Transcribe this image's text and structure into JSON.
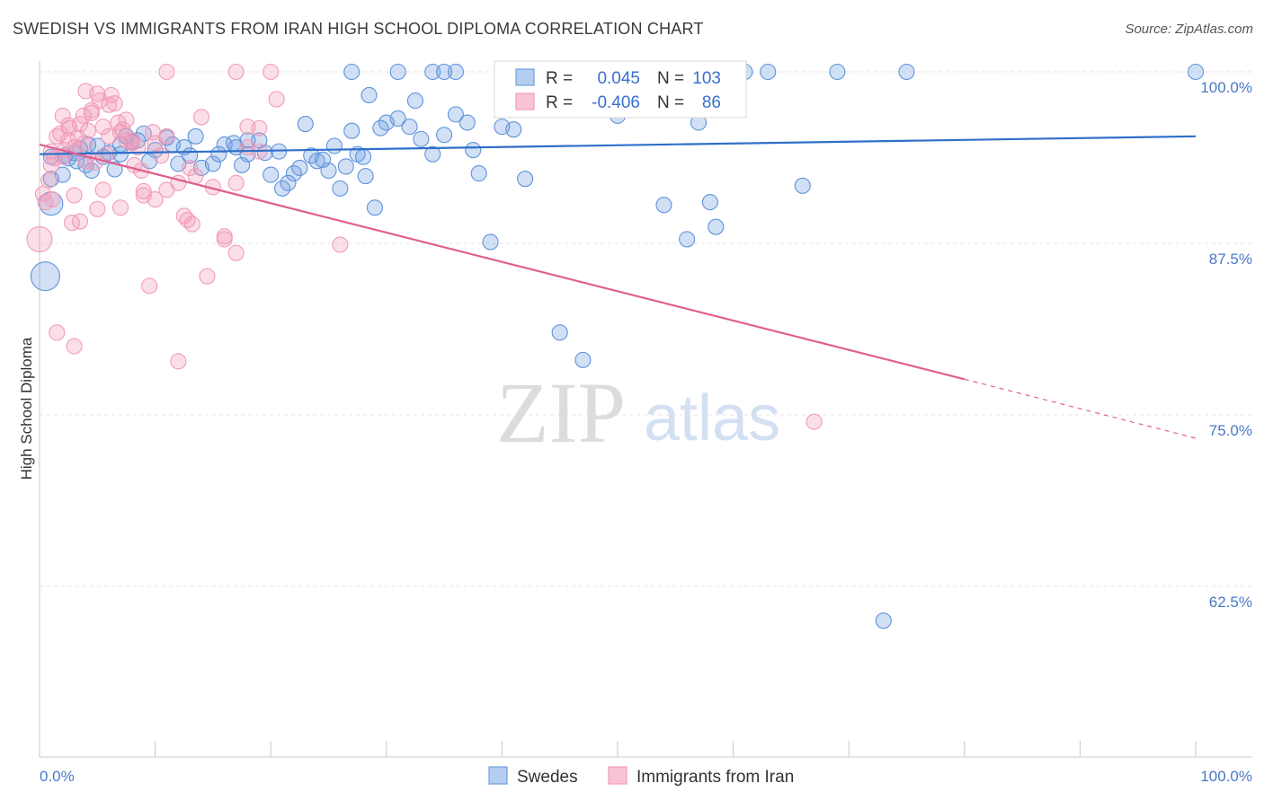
{
  "title": "SWEDISH VS IMMIGRANTS FROM IRAN HIGH SCHOOL DIPLOMA CORRELATION CHART",
  "source": "Source: ZipAtlas.com",
  "watermark": {
    "zip": "ZIP",
    "atlas": "atlas"
  },
  "colors": {
    "blue": "#6fa0e0",
    "blue_line": "#2f6fc9",
    "pink": "#f29bb8",
    "pink_line": "#e0608f",
    "axis_text": "#4a78c8"
  },
  "legend": {
    "r_label": "R =",
    "n_label": "N =",
    "rows": [
      {
        "r": "0.045",
        "n": "103"
      },
      {
        "r": "-0.406",
        "n": "86"
      }
    ]
  },
  "chart_data": {
    "type": "scatter",
    "ylabel": "High School Diploma",
    "x_tick_labels": [
      "0.0%",
      "100.0%"
    ],
    "y_tick_labels": [
      "100.0%",
      "87.5%",
      "75.0%",
      "62.5%"
    ],
    "xlim": [
      0,
      100
    ],
    "ylim": [
      50,
      102
    ],
    "y_ticks": [
      100,
      87.5,
      75,
      62.5
    ],
    "x_minor_ticks": [
      0,
      10,
      20,
      30,
      40,
      50,
      60,
      70,
      80,
      90,
      100
    ],
    "grid": true,
    "legend_position": "top-center",
    "series": [
      {
        "name": "Swedes",
        "r": 0.045,
        "n": 103,
        "trend": {
          "x0": 0,
          "y0": 94.0,
          "x1": 100,
          "y1": 95.3
        },
        "points": [
          [
            1,
            90.4
          ],
          [
            1,
            92.2
          ],
          [
            0.5,
            85.1
          ],
          [
            1,
            93.8
          ],
          [
            2,
            92.5
          ],
          [
            2.5,
            93.7
          ],
          [
            3,
            94.1
          ],
          [
            3.5,
            94.4
          ],
          [
            4,
            93.2
          ],
          [
            4.5,
            92.8
          ],
          [
            5,
            94.6
          ],
          [
            6,
            94.1
          ],
          [
            7,
            94.7
          ],
          [
            7.5,
            95.3
          ],
          [
            8,
            94.9
          ],
          [
            9,
            95.5
          ],
          [
            9.5,
            93.5
          ],
          [
            10,
            94.3
          ],
          [
            11,
            95.2
          ],
          [
            12,
            93.3
          ],
          [
            12.5,
            94.5
          ],
          [
            13,
            93.9
          ],
          [
            14,
            93.0
          ],
          [
            15,
            93.3
          ],
          [
            16,
            94.7
          ],
          [
            17,
            94.5
          ],
          [
            18,
            94.0
          ],
          [
            19,
            95.0
          ],
          [
            20,
            92.5
          ],
          [
            21,
            91.5
          ],
          [
            22,
            92.6
          ],
          [
            23,
            96.2
          ],
          [
            23.5,
            93.9
          ],
          [
            24,
            93.5
          ],
          [
            25,
            92.8
          ],
          [
            26,
            91.5
          ],
          [
            27,
            95.7
          ],
          [
            27.5,
            94.0
          ],
          [
            28,
            93.8
          ],
          [
            28.5,
            98.3
          ],
          [
            29,
            90.1
          ],
          [
            30,
            96.3
          ],
          [
            31,
            96.6
          ],
          [
            32,
            96.0
          ],
          [
            32.5,
            97.9
          ],
          [
            34,
            94.0
          ],
          [
            35,
            95.4
          ],
          [
            36,
            96.9
          ],
          [
            37,
            96.3
          ],
          [
            38,
            92.6
          ],
          [
            39,
            87.6
          ],
          [
            40,
            96.0
          ],
          [
            41,
            95.8
          ],
          [
            42,
            92.2
          ],
          [
            45,
            81.0
          ],
          [
            47,
            79.0
          ],
          [
            50,
            96.8
          ],
          [
            54,
            90.3
          ],
          [
            56,
            87.8
          ],
          [
            57,
            96.3
          ],
          [
            58,
            90.5
          ],
          [
            58.5,
            88.7
          ],
          [
            66,
            91.7
          ],
          [
            73,
            60.0
          ],
          [
            100,
            100
          ],
          [
            27,
            100
          ],
          [
            31,
            100
          ],
          [
            34,
            100
          ],
          [
            35,
            100
          ],
          [
            36,
            100
          ],
          [
            41,
            100
          ],
          [
            44,
            100
          ],
          [
            46,
            100
          ],
          [
            52,
            100
          ],
          [
            55,
            100
          ],
          [
            61,
            100
          ],
          [
            63,
            100
          ],
          [
            69,
            100
          ],
          [
            75,
            100
          ],
          [
            18,
            95.0
          ],
          [
            15.5,
            94.0
          ],
          [
            13.5,
            95.3
          ],
          [
            8.5,
            95.0
          ],
          [
            7,
            94.0
          ],
          [
            5.5,
            93.8
          ],
          [
            4.2,
            94.7
          ],
          [
            3.2,
            93.5
          ],
          [
            2.2,
            93.9
          ],
          [
            6.5,
            92.9
          ],
          [
            11.5,
            94.7
          ],
          [
            19.5,
            94.1
          ],
          [
            17.5,
            93.2
          ],
          [
            22.5,
            93.0
          ],
          [
            24.5,
            93.6
          ],
          [
            16.8,
            94.8
          ],
          [
            20.7,
            94.2
          ],
          [
            21.5,
            91.9
          ],
          [
            25.5,
            94.6
          ],
          [
            26.5,
            93.1
          ],
          [
            28.2,
            92.4
          ],
          [
            29.5,
            95.9
          ],
          [
            33,
            95.1
          ],
          [
            37.5,
            94.3
          ]
        ]
      },
      {
        "name": "Immigrants from Iran",
        "r": -0.406,
        "n": 86,
        "trend": {
          "x0": 0,
          "y0": 94.7,
          "x1": 80,
          "y1": 77.6,
          "dash_to": {
            "x": 100,
            "y": 73.3
          }
        },
        "points": [
          [
            0,
            87.8
          ],
          [
            0.5,
            90.5
          ],
          [
            1,
            94.2
          ],
          [
            1.5,
            95.3
          ],
          [
            2,
            96.8
          ],
          [
            2.5,
            95.0
          ],
          [
            3,
            94.5
          ],
          [
            3.5,
            96.2
          ],
          [
            4,
            98.6
          ],
          [
            4.5,
            97.2
          ],
          [
            5,
            98.4
          ],
          [
            5.5,
            96.0
          ],
          [
            6,
            95.3
          ],
          [
            6.5,
            97.7
          ],
          [
            7,
            95.6
          ],
          [
            7.5,
            96.5
          ],
          [
            8,
            95.0
          ],
          [
            8.5,
            94.5
          ],
          [
            9,
            91.3
          ],
          [
            10,
            94.8
          ],
          [
            11,
            95.3
          ],
          [
            12,
            91.9
          ],
          [
            13,
            93.0
          ],
          [
            14,
            96.7
          ],
          [
            15,
            91.6
          ],
          [
            16,
            88.0
          ],
          [
            17,
            91.9
          ],
          [
            18,
            94.5
          ],
          [
            19,
            95.9
          ],
          [
            20.5,
            98.0
          ],
          [
            1,
            93.2
          ],
          [
            1.5,
            81.0
          ],
          [
            2,
            93.8
          ],
          [
            3,
            91.0
          ],
          [
            3.5,
            89.1
          ],
          [
            4,
            93.5
          ],
          [
            5,
            90.0
          ],
          [
            5.5,
            91.4
          ],
          [
            6,
            97.6
          ],
          [
            7,
            90.1
          ],
          [
            7.5,
            95.0
          ],
          [
            8,
            94.8
          ],
          [
            9,
            91.0
          ],
          [
            10,
            90.7
          ],
          [
            11,
            91.4
          ],
          [
            12.5,
            89.5
          ],
          [
            13.5,
            92.4
          ],
          [
            14.5,
            85.1
          ],
          [
            16,
            87.8
          ],
          [
            17,
            86.8
          ],
          [
            18,
            96.0
          ],
          [
            19,
            94.2
          ],
          [
            20,
            100
          ],
          [
            26,
            87.4
          ],
          [
            12,
            78.9
          ],
          [
            9.5,
            84.4
          ],
          [
            3,
            80.0
          ],
          [
            11,
            100
          ],
          [
            17,
            100
          ],
          [
            67,
            74.5
          ],
          [
            2.5,
            96.1
          ],
          [
            4.2,
            95.7
          ],
          [
            4.8,
            93.4
          ],
          [
            6.2,
            98.3
          ],
          [
            3.8,
            96.8
          ],
          [
            1.8,
            95.5
          ],
          [
            2.2,
            94.3
          ],
          [
            5.2,
            97.9
          ],
          [
            6.8,
            96.3
          ],
          [
            3.3,
            95.2
          ],
          [
            0.8,
            92.1
          ],
          [
            1.3,
            93.7
          ],
          [
            2.8,
            89.0
          ],
          [
            4.5,
            97.0
          ],
          [
            5.8,
            94.0
          ],
          [
            7.2,
            95.8
          ],
          [
            8.2,
            93.2
          ],
          [
            9.8,
            95.6
          ],
          [
            10.5,
            93.9
          ],
          [
            13.2,
            88.9
          ],
          [
            12.8,
            89.2
          ],
          [
            0.3,
            91.1
          ],
          [
            1.1,
            90.7
          ],
          [
            2.6,
            95.9
          ],
          [
            3.9,
            94.8
          ],
          [
            8.8,
            92.8
          ]
        ]
      }
    ]
  }
}
